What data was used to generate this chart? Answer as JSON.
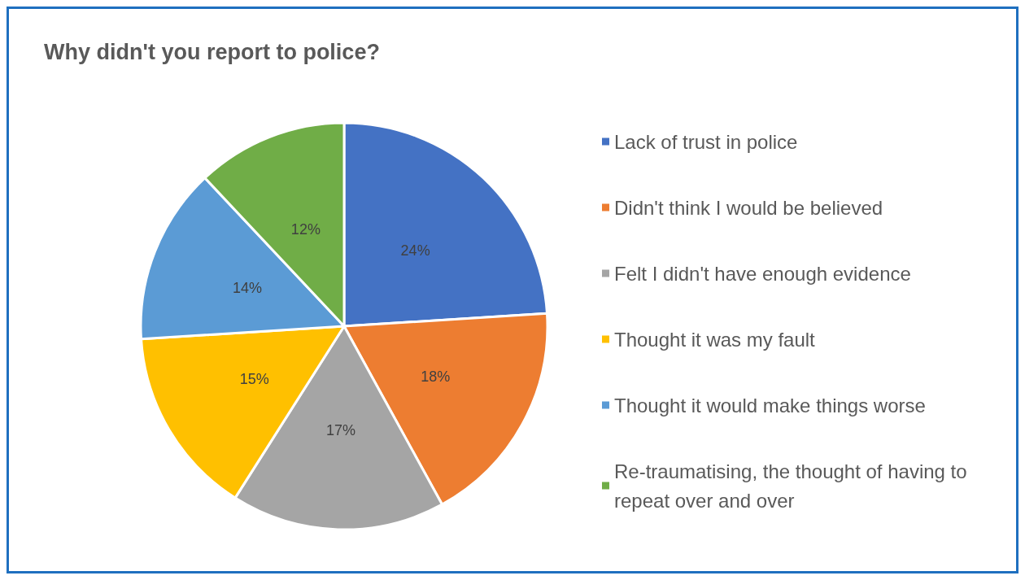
{
  "chart_data": {
    "type": "pie",
    "title": "Why didn't you report to police?",
    "categories": [
      "Lack of trust in police",
      "Didn't think I would be believed",
      "Felt I didn't have enough evidence",
      "Thought it was my fault",
      "Thought it would make things worse",
      "Re-traumatising, the thought of having to repeat over and over"
    ],
    "values": [
      24,
      18,
      17,
      15,
      14,
      12
    ],
    "colors": [
      "#4472c4",
      "#ed7d31",
      "#a5a5a5",
      "#ffc000",
      "#5b9bd5",
      "#70ad47"
    ],
    "value_labels": [
      "24%",
      "18%",
      "17%",
      "15%",
      "14%",
      "12%"
    ],
    "legend": "right"
  }
}
